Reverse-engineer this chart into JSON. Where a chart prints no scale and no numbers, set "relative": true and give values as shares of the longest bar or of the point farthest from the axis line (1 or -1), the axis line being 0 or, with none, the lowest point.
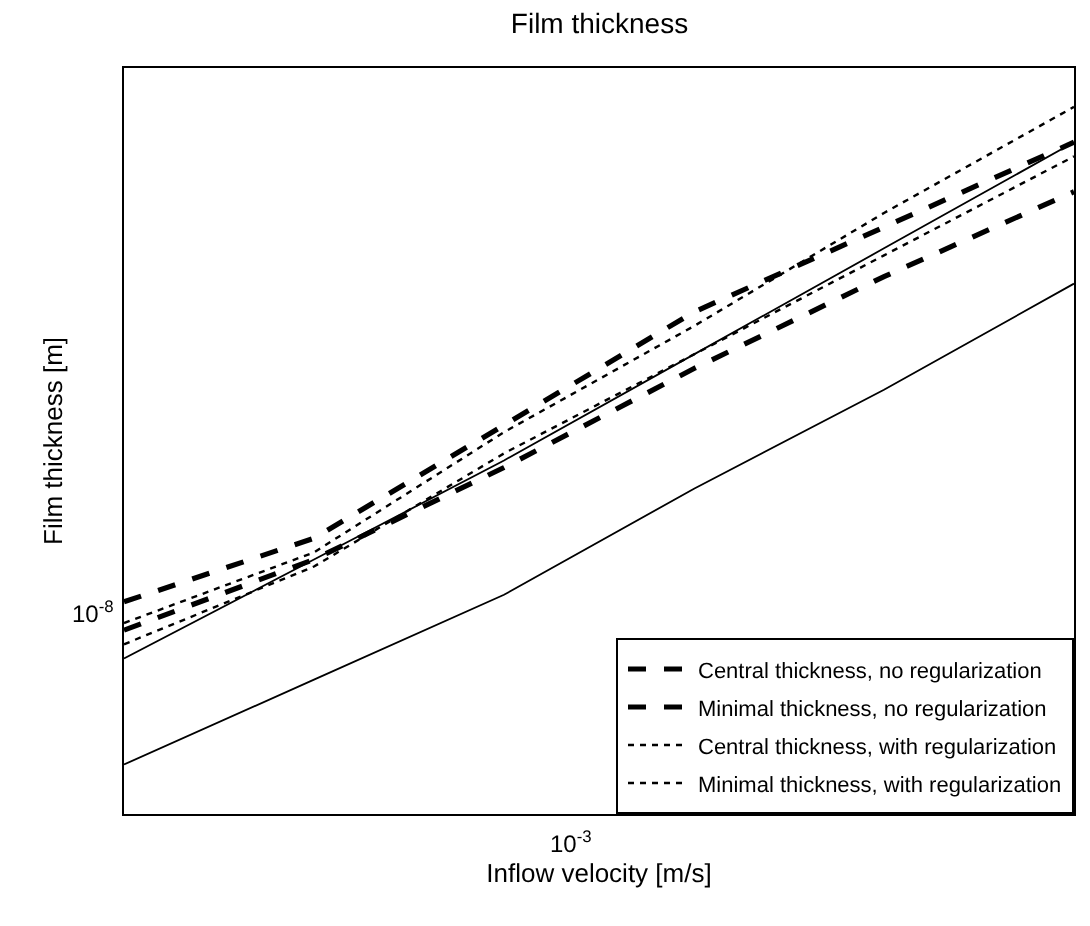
{
  "chart_data": {
    "type": "line",
    "title": "Film thickness",
    "xlabel": "Inflow velocity [m/s]",
    "ylabel": "Film thickness [m]",
    "relative": true,
    "legend": "bottom right",
    "marker": "none",
    "categories": [
      null,
      null,
      null,
      null,
      null,
      null
    ],
    "annotations": [
      "10$^{-8}$",
      "10$^{-3}$"
    ],
    "series": [
      {
        "name": "Central thickness, no regularization",
        "color": "#000000",
        "line_style": "dashed",
        "values": [
          0.3,
          0.39,
          0.55,
          0.71,
          0.83,
          0.95
        ]
      },
      {
        "name": "Minimal thickness, no regularization",
        "color": "#000000",
        "line_style": "dashed",
        "values": [
          0.26,
          0.36,
          0.49,
          0.63,
          0.76,
          0.88
        ]
      },
      {
        "name": "Central thickness, with regularization",
        "color": "#000000",
        "line_style": "dotted",
        "values": [
          0.27,
          0.37,
          0.54,
          0.69,
          0.85,
          1
        ]
      },
      {
        "name": "Minimal thickness, with regularization",
        "color": "#000000",
        "line_style": "dotted",
        "values": [
          0.24,
          0.35,
          0.51,
          0.65,
          0.79,
          0.93
        ]
      },
      {
        "color": "#000000",
        "line_style": "solid",
        "values": [
          0.22,
          0.36,
          0.5,
          0.65,
          0.8,
          0.95
        ]
      },
      {
        "color": "#000000",
        "line_style": "solid",
        "values": [
          0.07,
          0.19,
          0.31,
          0.46,
          0.6,
          0.75
        ]
      }
    ]
  }
}
